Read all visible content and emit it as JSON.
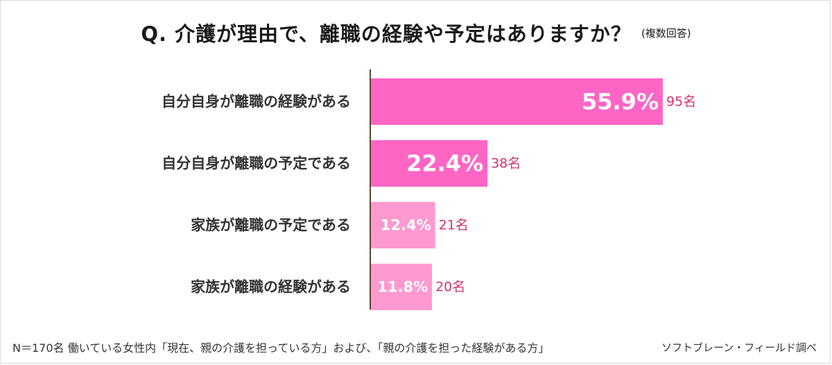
{
  "title": "Q.  介護が理由で、離職の経験や予定はありますか？",
  "subtitle": "(複数回答)",
  "footnote": "N＝170名 働いている女性内「現在、親の介護を担っている方」および、「親の介護を担った経験がある方」",
  "source": "ソフトブレーン・フィールド調べ",
  "colors": {
    "dark_pink": "#ff66c4",
    "light_pink": "#ff99d0",
    "count_text": "#d6336c",
    "axis": "#5a4630"
  },
  "chart_data": {
    "type": "bar",
    "orientation": "horizontal",
    "categories": [
      "自分自身が離職の経験がある",
      "自分自身が離職の予定である",
      "家族が離職の予定である",
      "家族が離職の経験がある"
    ],
    "values": [
      55.9,
      22.4,
      12.4,
      11.8
    ],
    "value_labels": [
      "55.9%",
      "22.4%",
      "12.4%",
      "11.8%"
    ],
    "counts": [
      "95名",
      "38名",
      "21名",
      "20名"
    ],
    "bar_colors": [
      "#ff66c4",
      "#ff66c4",
      "#ff99d0",
      "#ff99d0"
    ],
    "xlim": [
      0,
      100
    ]
  }
}
